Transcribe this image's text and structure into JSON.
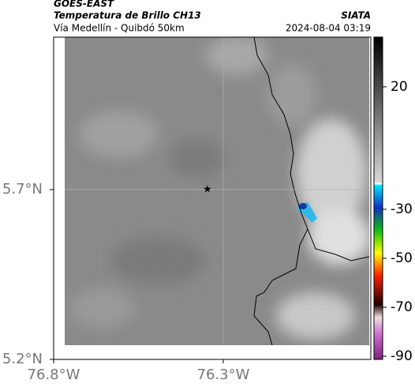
{
  "header": {
    "satellite": "GOES-EAST",
    "product": "Temperatura de Brillo CH13",
    "region": "Vía Medellín - Quibdó 50km",
    "source": "SIATA",
    "datetime": "2024-08-04 03:19"
  },
  "map": {
    "xlim": [
      -76.8,
      -75.865
    ],
    "ylim": [
      5.2,
      6.149
    ],
    "xticks": [
      {
        "value": -76.8,
        "label": "76.8°W"
      },
      {
        "value": -76.3,
        "label": "76.3°W"
      }
    ],
    "yticks": [
      {
        "value": 5.7,
        "label": "5.7°N"
      },
      {
        "value": 5.2,
        "label": "5.2°N"
      }
    ],
    "marker": [
      -76.347,
      5.7
    ]
  },
  "colorbar": {
    "lim": [
      -91.3,
      40.3
    ],
    "ticks": [
      20,
      -30,
      -50,
      -70,
      -90
    ]
  }
}
